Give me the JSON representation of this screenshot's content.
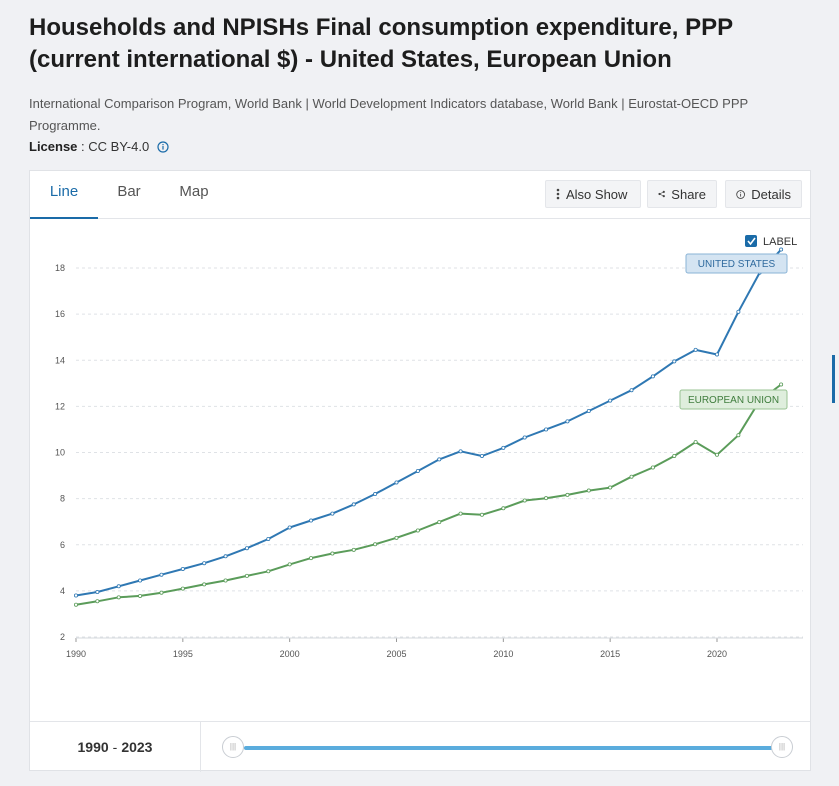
{
  "page": {
    "title": "Households and NPISHs Final consumption expenditure, PPP (current international $) - United States, European Union",
    "source": "International Comparison Program, World Bank | World Development Indicators database, World Bank | Eurostat-OECD PPP Programme.",
    "license_label": "License",
    "license_sep": " : ",
    "license_value": "CC BY-4.0"
  },
  "tabs": [
    {
      "label": "Line",
      "active": true
    },
    {
      "label": "Bar",
      "active": false
    },
    {
      "label": "Map",
      "active": false
    }
  ],
  "toolbar": {
    "also_show": "Also Show",
    "share": "Share",
    "details": "Details"
  },
  "label_toggle": {
    "text": "LABEL",
    "checked": true
  },
  "range": {
    "start": "1990",
    "sep": "-",
    "end": "2023"
  },
  "colors": {
    "us": "#2f78b3",
    "eu": "#5b9c5a",
    "accent": "#1a6ba8",
    "slider": "#5aacdd"
  },
  "chart_data": {
    "type": "line",
    "title": "",
    "xlabel": "",
    "ylabel": "",
    "xlim": [
      1990,
      2024
    ],
    "ylim": [
      2,
      19
    ],
    "y_ticks": [
      2,
      4,
      6,
      8,
      10,
      12,
      14,
      16,
      18
    ],
    "x_ticks": [
      1990,
      1995,
      2000,
      2005,
      2010,
      2015,
      2020
    ],
    "grid": true,
    "x": [
      1990,
      1991,
      1992,
      1993,
      1994,
      1995,
      1996,
      1997,
      1998,
      1999,
      2000,
      2001,
      2002,
      2003,
      2004,
      2005,
      2006,
      2007,
      2008,
      2009,
      2010,
      2011,
      2012,
      2013,
      2014,
      2015,
      2016,
      2017,
      2018,
      2019,
      2020,
      2021,
      2022,
      2023
    ],
    "series": [
      {
        "name": "UNITED STATES",
        "color": "#2f78b3",
        "values": [
          3.8,
          3.95,
          4.2,
          4.45,
          4.7,
          4.95,
          5.2,
          5.5,
          5.85,
          6.25,
          6.75,
          7.05,
          7.35,
          7.75,
          8.2,
          8.7,
          9.2,
          9.7,
          10.05,
          9.85,
          10.2,
          10.65,
          11.0,
          11.35,
          11.8,
          12.25,
          12.7,
          13.3,
          13.95,
          14.45,
          14.25,
          16.1,
          17.8,
          18.8
        ]
      },
      {
        "name": "EUROPEAN UNION",
        "color": "#5b9c5a",
        "values": [
          3.4,
          3.55,
          3.72,
          3.78,
          3.92,
          4.1,
          4.28,
          4.45,
          4.65,
          4.85,
          5.15,
          5.42,
          5.62,
          5.78,
          6.02,
          6.3,
          6.62,
          6.98,
          7.35,
          7.3,
          7.58,
          7.92,
          8.02,
          8.16,
          8.35,
          8.48,
          8.95,
          9.35,
          9.85,
          10.45,
          9.9,
          10.75,
          12.25,
          12.95
        ]
      }
    ]
  }
}
